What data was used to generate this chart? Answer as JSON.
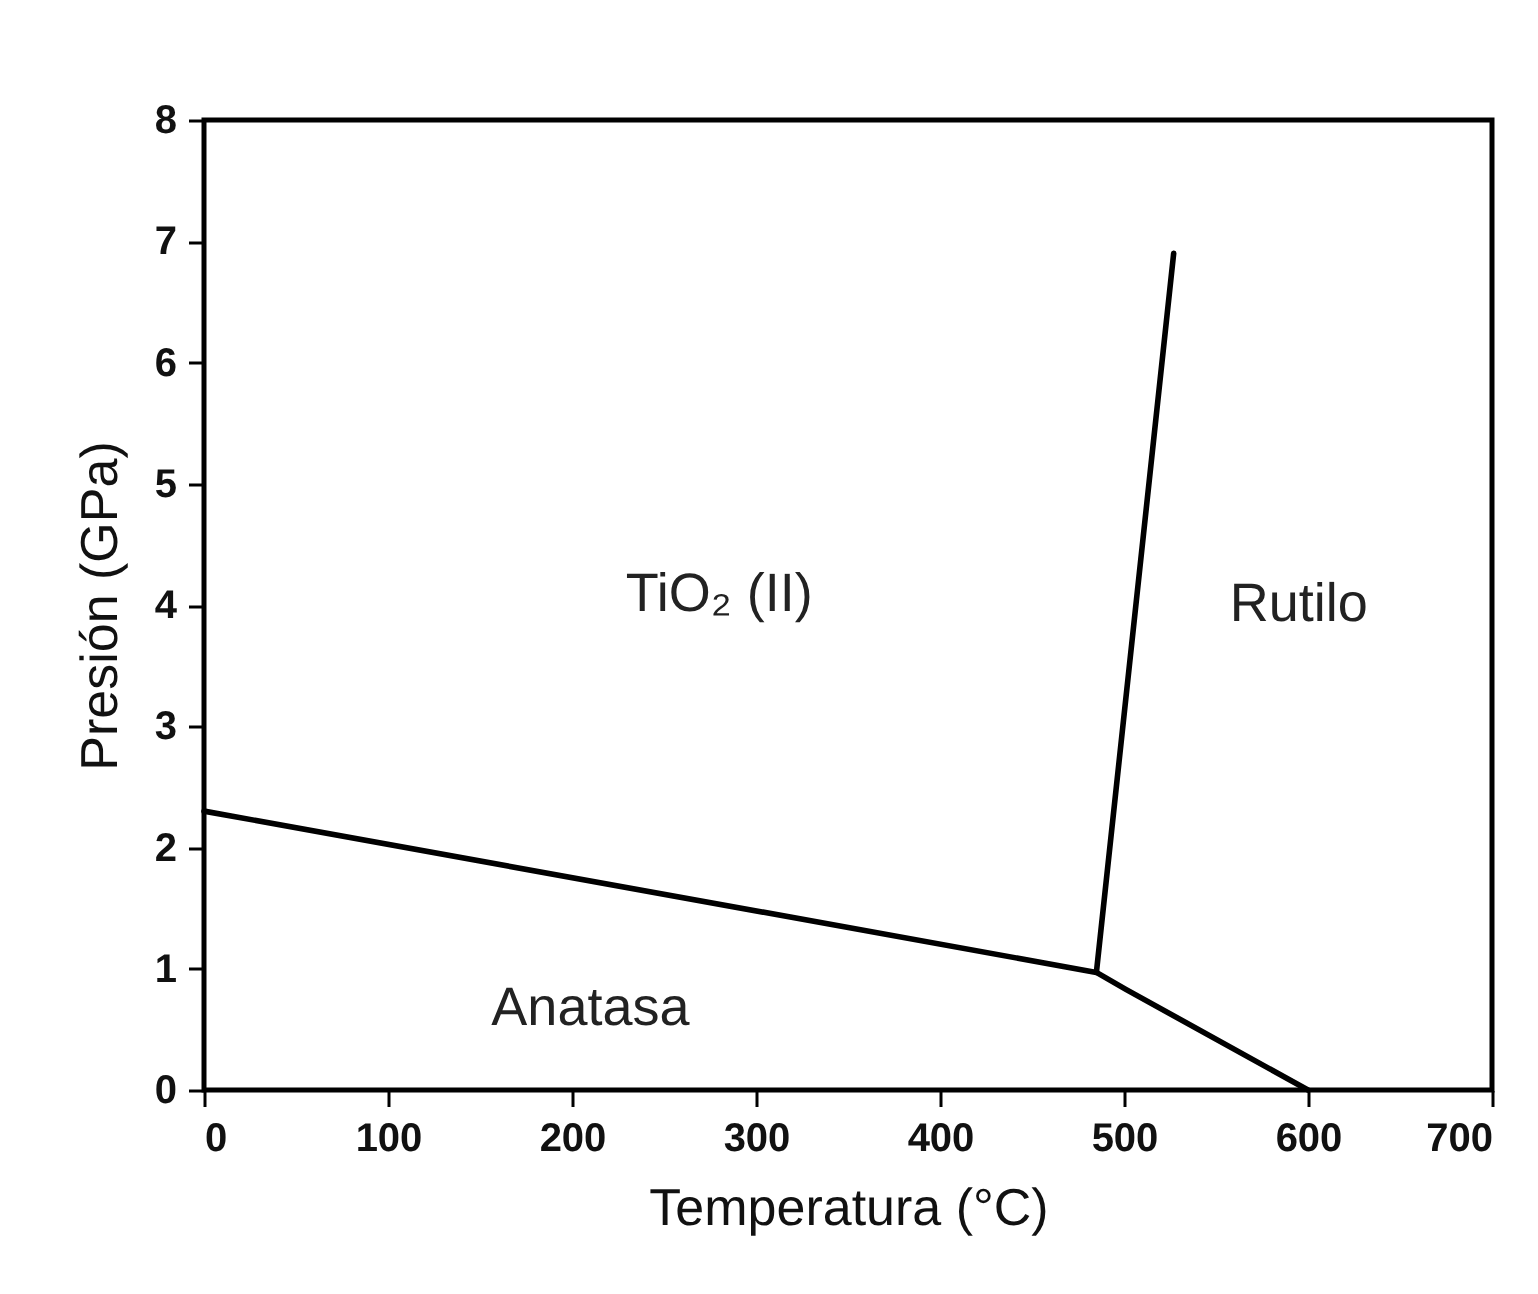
{
  "chart_data": {
    "type": "line",
    "xlabel": "Temperatura (°C)",
    "ylabel": "Presión (GPa)",
    "series": [
      {
        "color": "#000000",
        "x": [
          0,
          485,
          501,
          600
        ],
        "values": [
          2.3,
          0.97,
          0.83,
          0
        ]
      },
      {
        "color": "#000000",
        "x": [
          485,
          527
        ],
        "values": [
          0.97,
          6.9
        ]
      }
    ],
    "xlim": [
      0,
      700
    ],
    "ylim": [
      0,
      8
    ],
    "xticks": [
      0,
      100,
      200,
      300,
      400,
      500,
      600,
      700
    ],
    "yticks": [
      0,
      1,
      2,
      3,
      4,
      5,
      6,
      7,
      8
    ],
    "grid": false,
    "marker": "none",
    "line_style": "solid",
    "annotations": [
      "TiO₂ (II)",
      "Rutilo",
      "Anatasa"
    ]
  }
}
